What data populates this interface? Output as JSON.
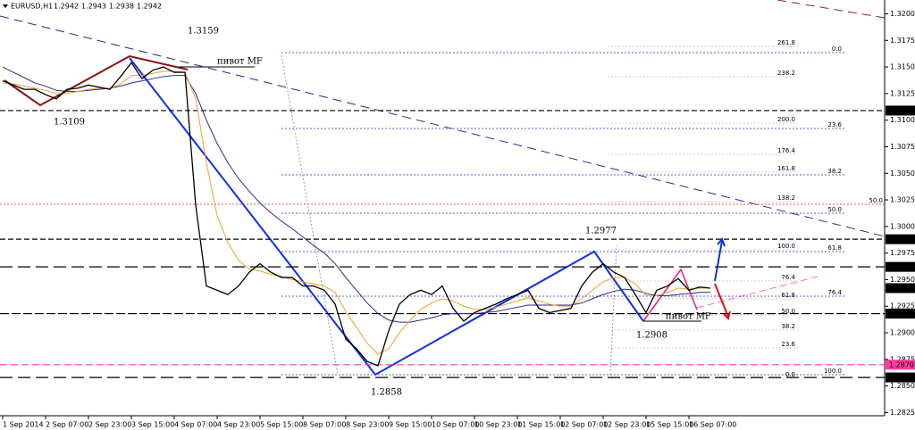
{
  "chart_data": {
    "type": "line",
    "ohlc": [
      1.2942,
      1.2943,
      1.2938,
      1.2942
    ],
    "categories": [
      "1 Sep 2014",
      null,
      null,
      null,
      "2 Sep 07:00",
      null,
      null,
      null,
      "2 Sep 23:00",
      null,
      null,
      null,
      "3 Sep 15:00",
      null,
      null,
      null,
      "4 Sep 07:00",
      null,
      null,
      null,
      "4 Sep 23:00",
      null,
      null,
      null,
      "5 Sep 15:00",
      null,
      null,
      null,
      "8 Sep 07:00",
      null,
      null,
      null,
      "8 Sep 23:00",
      null,
      null,
      null,
      "9 Sep 15:00",
      null,
      null,
      null,
      "10 Sep 07:00",
      null,
      null,
      null,
      "10 Sep 23:00",
      null,
      null,
      null,
      "11 Sep 15:00",
      null,
      null,
      null,
      "12 Sep 07:00",
      null,
      null,
      null,
      "12 Sep 23:00",
      null,
      null,
      null,
      "15 Sep 15:00",
      null,
      null,
      null,
      "16 Sep 07:00",
      null,
      null
    ],
    "series": [
      {
        "name": "EURUSD,H1",
        "color": "#000000",
        "values": [
          1.3137,
          1.3133,
          1.3129,
          1.3129,
          1.3124,
          1.312,
          1.3129,
          1.313,
          1.3133,
          1.3131,
          1.3129,
          1.3141,
          1.3154,
          1.3139,
          1.3147,
          1.315,
          1.3145,
          1.3145,
          1.302,
          1.2944,
          1.294,
          1.2936,
          1.2944,
          1.2957,
          1.2965,
          1.2957,
          1.2952,
          1.2952,
          1.2944,
          1.2944,
          1.294,
          1.2927,
          1.2894,
          1.2885,
          1.2873,
          1.2869,
          1.2902,
          1.2927,
          1.2936,
          1.294,
          1.2936,
          1.2944,
          1.2923,
          1.2911,
          1.2919,
          1.2923,
          1.2927,
          1.2932,
          1.2936,
          1.294,
          1.2923,
          1.2919,
          1.2921,
          1.2923,
          1.2944,
          1.2957,
          1.2965,
          1.2957,
          1.2952,
          1.2936,
          1.2919,
          1.294,
          1.2944,
          1.2951,
          1.294,
          1.2943,
          1.2942
        ]
      },
      {
        "color": "#f0a030",
        "values": [
          1.3135,
          1.3134,
          1.3132,
          1.313,
          1.3128,
          1.3125,
          1.3125,
          1.3127,
          1.3129,
          1.313,
          1.313,
          1.3134,
          1.3142,
          1.3142,
          1.3144,
          1.3146,
          1.3146,
          1.3145,
          1.312,
          1.306,
          1.301,
          1.2985,
          1.2968,
          1.296,
          1.2958,
          1.2955,
          1.2953,
          1.295,
          1.2948,
          1.2946,
          1.2944,
          1.2938,
          1.292,
          1.2905,
          1.289,
          1.288,
          1.2885,
          1.29,
          1.2912,
          1.2922,
          1.2928,
          1.2932,
          1.293,
          1.2925,
          1.2922,
          1.2922,
          1.2924,
          1.2927,
          1.293,
          1.2933,
          1.293,
          1.2927,
          1.2925,
          1.2925,
          1.2932,
          1.294,
          1.2948,
          1.2952,
          1.2952,
          1.2946,
          1.2935,
          1.2935,
          1.2938,
          1.2942,
          1.2941,
          1.2942,
          1.2942
        ]
      },
      {
        "color": "#2a2a90",
        "values": [
          1.315,
          1.3145,
          1.314,
          1.3135,
          1.3132,
          1.3128,
          1.3127,
          1.3127,
          1.3128,
          1.3129,
          1.313,
          1.3132,
          1.3135,
          1.3137,
          1.3139,
          1.3141,
          1.3142,
          1.3142,
          1.3125,
          1.31,
          1.3078,
          1.306,
          1.3045,
          1.3033,
          1.3022,
          1.3013,
          1.3005,
          1.2998,
          1.299,
          1.2982,
          1.2975,
          1.2965,
          1.2952,
          1.294,
          1.2928,
          1.2918,
          1.2912,
          1.291,
          1.291,
          1.2912,
          1.2914,
          1.2917,
          1.2918,
          1.2918,
          1.2918,
          1.2919,
          1.292,
          1.2922,
          1.2924,
          1.2926,
          1.2926,
          1.2926,
          1.2926,
          1.2926,
          1.2928,
          1.2932,
          1.2936,
          1.2939,
          1.2941,
          1.294,
          1.2937,
          1.2935,
          1.2935,
          1.2936,
          1.2937,
          1.2938,
          1.2938
        ]
      }
    ],
    "ylim": [
      1.2822,
      1.3213
    ],
    "yticks": [
      1.2825,
      {
        "value": 1.285,
        "label": "1.2850"
      },
      1.2875,
      {
        "value": 1.29,
        "label": "1.2900"
      },
      1.2925,
      {
        "value": 1.295,
        "label": "1.2950"
      },
      1.2975,
      {
        "value": 1.3,
        "label": "1.3000"
      },
      1.3025,
      {
        "value": 1.305,
        "label": "1.3050"
      },
      1.3075,
      {
        "value": 1.31,
        "label": "1.3100"
      },
      1.3125,
      {
        "value": 1.315,
        "label": "1.3150"
      },
      1.3175,
      {
        "value": 1.32,
        "label": "1.3200"
      }
    ],
    "levels": [
      {
        "value": 1.3109,
        "color": "#000000",
        "dash": "6,3",
        "line": true
      },
      {
        "value": 1.2988,
        "color": "#000000",
        "dash": "6,3",
        "line": true
      },
      {
        "value": 1.2962,
        "color": "#000000",
        "dash": "14,6",
        "line": true
      },
      {
        "value": 1.2942,
        "color": "#000000",
        "line": false
      },
      {
        "value": 1.2918,
        "color": "#000000",
        "dash": "10,3",
        "line": true
      },
      {
        "value": 1.287,
        "label": "1.2870",
        "color": "#ff3aa0",
        "dash": "8,4",
        "line": true
      },
      {
        "value": 1.2858,
        "color": "#000000",
        "dash": "14,6",
        "line": true
      }
    ],
    "annotations": {
      "swings": [
        "1.3159",
        "1.3109",
        "1.2858",
        "1.2977",
        "1.2908",
        "пивот MF",
        "пивот MF"
      ],
      "fib_right": [
        "0.0",
        "23.6",
        "38.2",
        "50.0",
        "61.8",
        "76.4",
        "100.0"
      ],
      "fib_left": [
        "261.8",
        "238.2",
        "200.0",
        "176.4",
        "161.8",
        "138.2",
        "100.0",
        "76.4",
        "61.8",
        "50.0",
        "38.2",
        "23.6",
        "0.0"
      ],
      "fib_extra": [
        "50.0"
      ]
    }
  }
}
